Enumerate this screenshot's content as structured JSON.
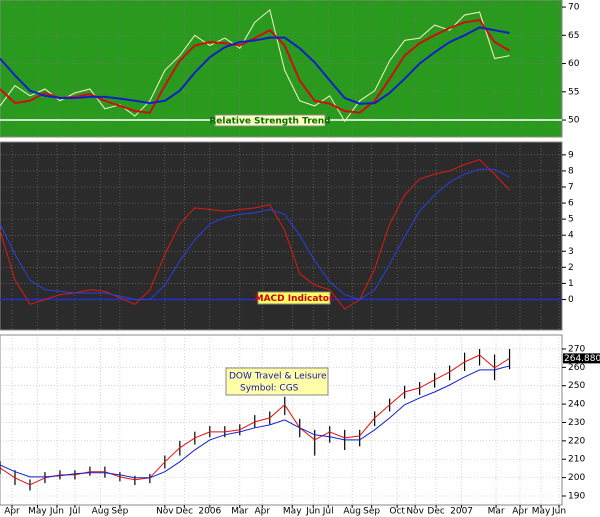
{
  "chart_data": [
    {
      "type": "line",
      "annotation": "Relative Strength Trend",
      "background": "#2a9a1e",
      "x": [
        0,
        1,
        2,
        3,
        4,
        5,
        6,
        7,
        8,
        9,
        10,
        11,
        12,
        13,
        14,
        15,
        16,
        17,
        18,
        19,
        20,
        21,
        22,
        23,
        24,
        25,
        26,
        27,
        28,
        29,
        30,
        31,
        32,
        33,
        34
      ],
      "xlim": [
        0,
        37.5
      ],
      "ylim": [
        47,
        71.25
      ],
      "yticks": [
        50,
        55,
        60,
        65,
        70
      ],
      "reference": 50,
      "reference_color": "#ffffff",
      "series": [
        {
          "color": "#f4f4c8",
          "width": 1,
          "values": [
            52.5,
            56.1,
            54.3,
            55.5,
            53.4,
            54.8,
            55.5,
            52.0,
            52.7,
            50.7,
            53.4,
            58.8,
            61.4,
            65.0,
            63.2,
            64.5,
            62.7,
            67.3,
            69.5,
            58.8,
            53.4,
            52.5,
            54.3,
            49.8,
            53.4,
            55.2,
            60.5,
            64.1,
            64.5,
            66.8,
            65.9,
            68.6,
            69.1,
            60.9,
            61.4
          ]
        },
        {
          "color": "#cc1010",
          "width": 2,
          "values": [
            55.5,
            53.0,
            53.4,
            54.8,
            53.9,
            54.1,
            54.6,
            53.4,
            52.5,
            51.6,
            51.3,
            56.1,
            60.5,
            63.2,
            63.8,
            63.6,
            63.2,
            64.5,
            65.9,
            63.2,
            57.0,
            53.4,
            52.9,
            51.6,
            51.3,
            53.4,
            57.3,
            61.4,
            63.6,
            65.0,
            66.3,
            67.3,
            67.7,
            63.8,
            62.3
          ]
        },
        {
          "color": "#1020c8",
          "width": 2,
          "values": [
            60.9,
            57.9,
            55.2,
            54.3,
            53.9,
            53.9,
            54.1,
            54.1,
            53.8,
            53.4,
            53.0,
            53.4,
            55.2,
            58.4,
            61.1,
            62.9,
            63.8,
            64.1,
            64.6,
            64.6,
            62.7,
            60.2,
            57.0,
            53.9,
            52.9,
            53.0,
            54.8,
            57.3,
            60.0,
            62.0,
            63.8,
            65.0,
            66.4,
            65.9,
            65.4
          ]
        }
      ]
    },
    {
      "type": "line",
      "annotation": "MACD Indicator",
      "background": "#2b2b2b",
      "x": [
        0,
        1,
        2,
        3,
        4,
        5,
        6,
        7,
        8,
        9,
        10,
        11,
        12,
        13,
        14,
        15,
        16,
        17,
        18,
        19,
        20,
        21,
        22,
        23,
        24,
        25,
        26,
        27,
        28,
        29,
        30,
        31,
        32,
        33,
        34
      ],
      "xlim": [
        0,
        37.5
      ],
      "ylim": [
        -1.9,
        9.8
      ],
      "yticks": [
        0,
        1,
        2,
        3,
        4,
        5,
        6,
        7,
        8,
        9
      ],
      "reference": 0,
      "reference_color": "#2030d0",
      "series": [
        {
          "color": "#e01818",
          "width": 1,
          "values": [
            4.3,
            1.2,
            -0.3,
            0,
            0.3,
            0.4,
            0.6,
            0.5,
            0.1,
            -0.3,
            0.6,
            2.8,
            4.7,
            5.7,
            5.6,
            5.5,
            5.6,
            5.7,
            5.9,
            4.3,
            1.6,
            0.9,
            0.6,
            -0.6,
            0,
            1.9,
            4.7,
            6.5,
            7.5,
            7.8,
            8.0,
            8.4,
            8.7,
            7.8,
            6.8
          ]
        },
        {
          "color": "#2a40e0",
          "width": 1,
          "values": [
            4.7,
            2.8,
            1.2,
            0.6,
            0.5,
            0.4,
            0.4,
            0.4,
            0.2,
            0,
            0,
            0.9,
            2.4,
            3.7,
            4.7,
            5.1,
            5.3,
            5.4,
            5.6,
            5.3,
            4.0,
            2.4,
            1.1,
            0.3,
            0,
            0.6,
            2.2,
            3.9,
            5.5,
            6.5,
            7.3,
            7.8,
            8.1,
            8.1,
            7.6
          ]
        }
      ]
    },
    {
      "type": "hilo",
      "annotation": [
        "DOW Travel & Leisure",
        "Symbol: CGS"
      ],
      "background": "#ffffff",
      "x": [
        0,
        1,
        2,
        3,
        4,
        5,
        6,
        7,
        8,
        9,
        10,
        11,
        12,
        13,
        14,
        15,
        16,
        17,
        18,
        19,
        20,
        21,
        22,
        23,
        24,
        25,
        26,
        27,
        28,
        29,
        30,
        31,
        32,
        33,
        34
      ],
      "xlim": [
        0,
        37.5
      ],
      "ylim": [
        185.1,
        277.6
      ],
      "yticks": [
        190,
        200,
        210,
        220,
        230,
        240,
        250,
        260,
        270
      ],
      "xticks": [
        {
          "value": 0.8,
          "label": "Apr"
        },
        {
          "value": 2.5,
          "label": "May"
        },
        {
          "value": 3.8,
          "label": "Jun"
        },
        {
          "value": 5,
          "label": "Jul"
        },
        {
          "value": 6.7,
          "label": "Aug"
        },
        {
          "value": 8,
          "label": "Sep"
        },
        {
          "value": 11,
          "label": "Nov"
        },
        {
          "value": 12.3,
          "label": "Dec"
        },
        {
          "value": 14,
          "label": "2006"
        },
        {
          "value": 16,
          "label": "Mar"
        },
        {
          "value": 17.5,
          "label": "Apr"
        },
        {
          "value": 19.5,
          "label": "May"
        },
        {
          "value": 20.9,
          "label": "Jun"
        },
        {
          "value": 21.9,
          "label": "Jul"
        },
        {
          "value": 23.5,
          "label": "Aug"
        },
        {
          "value": 24.8,
          "label": "Sep"
        },
        {
          "value": 26.5,
          "label": "Oct"
        },
        {
          "value": 27.7,
          "label": "Nov"
        },
        {
          "value": 29.1,
          "label": "Dec"
        },
        {
          "value": 30.8,
          "label": "2007"
        },
        {
          "value": 33.1,
          "label": "Mar"
        },
        {
          "value": 34.7,
          "label": "Apr"
        },
        {
          "value": 36.1,
          "label": "May"
        },
        {
          "value": 37.3,
          "label": "Jun"
        }
      ],
      "bar_color": "#000000",
      "high": [
        209,
        204,
        199,
        203,
        204,
        204,
        206,
        206,
        203,
        201,
        202,
        212,
        220,
        225,
        228,
        228,
        229,
        234,
        236,
        244,
        232,
        226,
        228,
        226,
        226,
        236,
        243,
        250,
        252,
        257,
        261,
        268,
        270,
        267,
        270
      ],
      "low": [
        202,
        196,
        193,
        197,
        199,
        199,
        201,
        200,
        198,
        196,
        197,
        205,
        212,
        218,
        222,
        222,
        223,
        227,
        229,
        234,
        222,
        212,
        219,
        215,
        217,
        228,
        236,
        243,
        245,
        249,
        253,
        258,
        261,
        253,
        259
      ],
      "last_price": {
        "value": 264.88,
        "label": "264.8800"
      },
      "series": [
        {
          "color": "#e01010",
          "width": 1,
          "values": [
            205.3,
            199.9,
            196.1,
            199.9,
            201.5,
            201.5,
            203.2,
            203.2,
            200.4,
            198.8,
            199.9,
            208.6,
            216.2,
            221.6,
            224.9,
            224.9,
            226.0,
            230.3,
            232.5,
            239.6,
            227.1,
            220.5,
            224.9,
            221.6,
            222.7,
            232.5,
            239.6,
            246.6,
            248.8,
            253.2,
            257.5,
            262.9,
            266.7,
            259.7,
            264.88
          ]
        },
        {
          "color": "#1020d0",
          "width": 1,
          "values": [
            206.9,
            203.2,
            200.4,
            200.4,
            201.0,
            202.1,
            202.6,
            202.6,
            201.5,
            199.9,
            199.9,
            203.2,
            208.6,
            215.1,
            220.5,
            223.3,
            224.9,
            227.1,
            228.7,
            231.4,
            227.1,
            223.3,
            222.2,
            220.5,
            220.5,
            226.0,
            232.5,
            239.6,
            243.4,
            246.6,
            250.4,
            254.8,
            258.6,
            258.6,
            260.8
          ]
        }
      ]
    }
  ]
}
